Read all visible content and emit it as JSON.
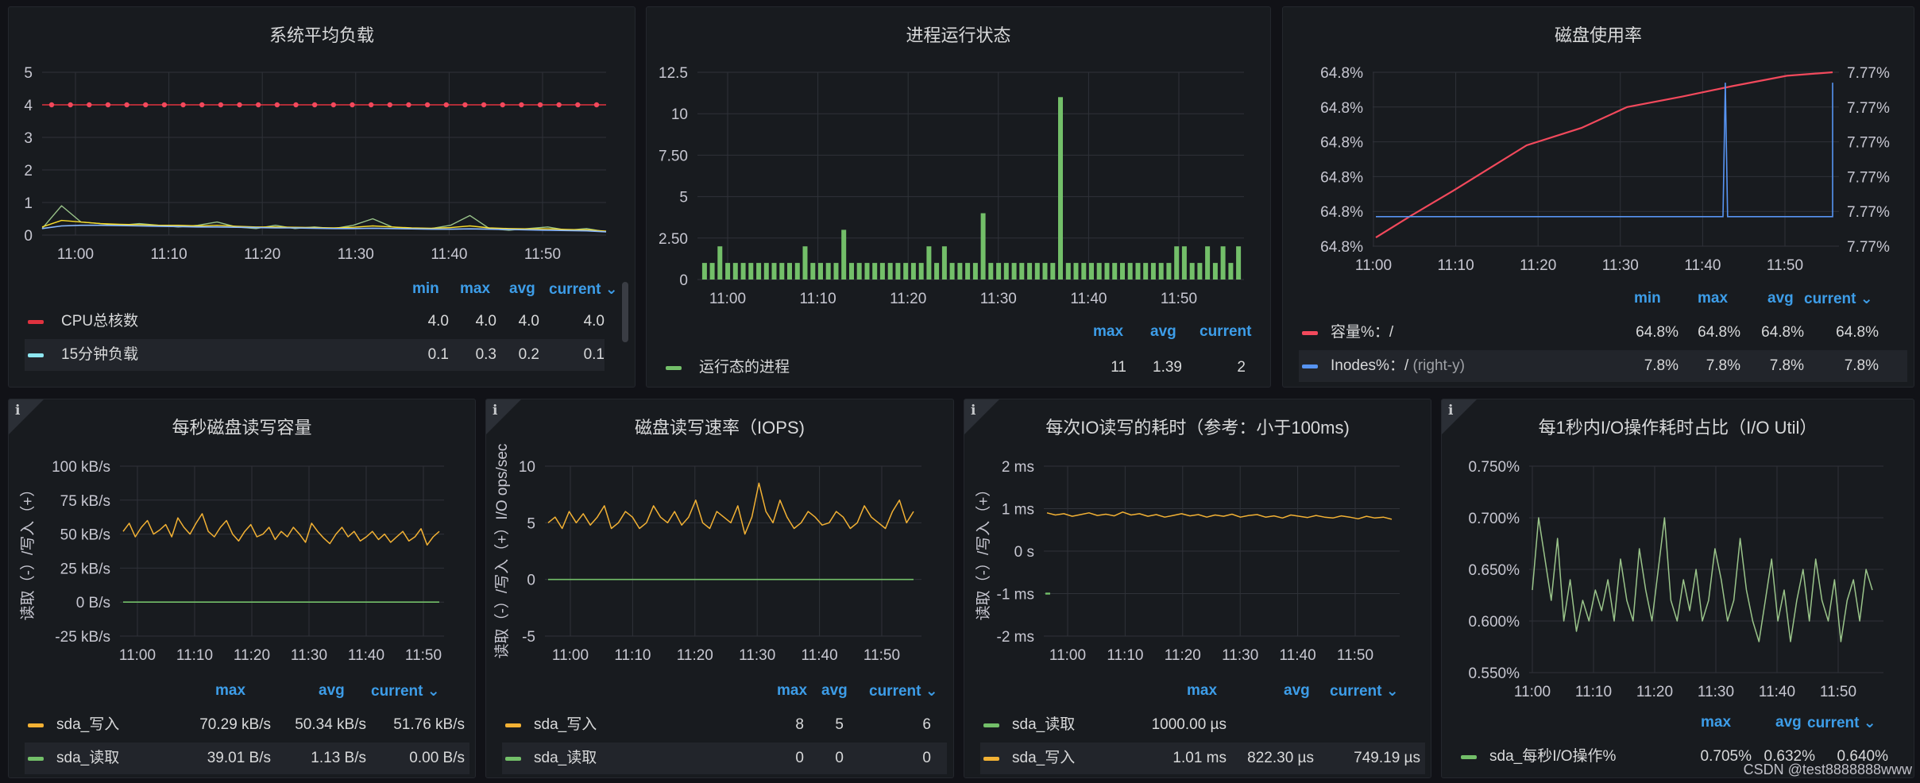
{
  "colors": {
    "grid": "#2f3239",
    "red": "#f2495c",
    "darkred": "#e0323f",
    "green": "#73bf69",
    "yellow": "#fade2a",
    "orange": "#f2b134",
    "blue": "#5794f2",
    "cyan": "#8ab8ff",
    "lightgreen": "#9ac48a",
    "legendHead": "#3d9de8"
  },
  "panels": {
    "load": {
      "title": "系统平均负载",
      "legend_heads": [
        "min",
        "max",
        "avg",
        "current ⌄"
      ],
      "rows": [
        {
          "name": "CPU总核数",
          "values": [
            "4.0",
            "4.0",
            "4.0",
            "4.0"
          ]
        },
        {
          "name": "15分钟负载",
          "values": [
            "0.1",
            "0.3",
            "0.2",
            "0.1"
          ]
        }
      ]
    },
    "proc": {
      "title": "进程运行状态",
      "legend_heads": [
        "max",
        "avg",
        "current"
      ],
      "rows": [
        {
          "name": "运行态的进程",
          "values": [
            "11",
            "1.39",
            "2"
          ]
        }
      ]
    },
    "disk": {
      "title": "磁盘使用率",
      "legend_heads": [
        "min",
        "max",
        "avg",
        "current ⌄"
      ],
      "rows": [
        {
          "name": "容量%：/",
          "values": [
            "64.8%",
            "64.8%",
            "64.8%",
            "64.8%"
          ]
        },
        {
          "name": "Inodes%：/",
          "suffix": "(right-y)",
          "values": [
            "7.8%",
            "7.8%",
            "7.8%",
            "7.8%"
          ]
        }
      ]
    },
    "rw": {
      "title": "每秒磁盘读写容量",
      "legend_heads": [
        "max",
        "avg",
        "current ⌄"
      ],
      "rows": [
        {
          "name": "sda_写入",
          "values": [
            "70.29 kB/s",
            "50.34 kB/s",
            "51.76 kB/s"
          ]
        },
        {
          "name": "sda_读取",
          "values": [
            "39.01 B/s",
            "1.13 B/s",
            "0.00 B/s"
          ]
        }
      ]
    },
    "iops": {
      "title": "磁盘读写速率（IOPS)",
      "legend_heads": [
        "max",
        "avg",
        "current ⌄"
      ],
      "rows": [
        {
          "name": "sda_写入",
          "values": [
            "8",
            "5",
            "6"
          ]
        },
        {
          "name": "sda_读取",
          "values": [
            "0",
            "0",
            "0"
          ]
        }
      ]
    },
    "lat": {
      "title": "每次IO读写的耗时（参考：小于100ms)",
      "legend_heads": [
        "max",
        "avg",
        "current ⌄"
      ],
      "rows": [
        {
          "name": "sda_读取",
          "values": [
            "1000.00 µs",
            "",
            ""
          ]
        },
        {
          "name": "sda_写入",
          "values": [
            "1.01 ms",
            "822.30 µs",
            "749.19 µs"
          ]
        }
      ]
    },
    "util": {
      "title": "每1秒内I/O操作耗时占比（I/O Util）",
      "legend_heads": [
        "max",
        "avg",
        "current ⌄"
      ],
      "rows": [
        {
          "name": "sda_每秒I/O操作%",
          "values": [
            "0.705%",
            "0.632%",
            "0.640%"
          ]
        }
      ]
    }
  },
  "watermark": "CSDN @test8888888www",
  "chart_data": [
    {
      "id": "load",
      "type": "line",
      "title": "系统平均负载",
      "x_ticks": [
        "11:00",
        "11:10",
        "11:20",
        "11:30",
        "11:40",
        "11:50"
      ],
      "y_ticks": [
        "5",
        "4",
        "3",
        "2",
        "1",
        "0"
      ],
      "ylim": [
        0,
        5
      ],
      "series": [
        {
          "name": "CPU总核数",
          "values": [
            4.0,
            4.0,
            4.0,
            4.0,
            4.0,
            4.0,
            4.0,
            4.0,
            4.0,
            4.0,
            4.0,
            4.0,
            4.0,
            4.0,
            4.0,
            4.0,
            4.0,
            4.0,
            4.0,
            4.0,
            4.0,
            4.0,
            4.0,
            4.0,
            4.0,
            4.0,
            4.0,
            4.0,
            4.0,
            4.0
          ]
        },
        {
          "values": [
            0.2,
            0.9,
            0.4,
            0.35,
            0.3,
            0.35,
            0.3,
            0.25,
            0.3,
            0.4,
            0.25,
            0.2,
            0.3,
            0.2,
            0.25,
            0.2,
            0.3,
            0.5,
            0.25,
            0.2,
            0.2,
            0.3,
            0.6,
            0.2,
            0.15,
            0.2,
            0.25,
            0.15,
            0.2,
            0.1
          ]
        },
        {
          "values": [
            0.25,
            0.45,
            0.4,
            0.35,
            0.33,
            0.32,
            0.3,
            0.3,
            0.28,
            0.3,
            0.27,
            0.25,
            0.25,
            0.24,
            0.23,
            0.22,
            0.24,
            0.28,
            0.25,
            0.22,
            0.21,
            0.23,
            0.28,
            0.22,
            0.2,
            0.19,
            0.19,
            0.17,
            0.16,
            0.12
          ]
        },
        {
          "name": "15分钟负载",
          "values": [
            0.2,
            0.28,
            0.3,
            0.3,
            0.29,
            0.28,
            0.27,
            0.26,
            0.25,
            0.25,
            0.24,
            0.23,
            0.22,
            0.22,
            0.21,
            0.2,
            0.2,
            0.21,
            0.2,
            0.19,
            0.18,
            0.18,
            0.19,
            0.18,
            0.17,
            0.16,
            0.15,
            0.14,
            0.13,
            0.1
          ]
        }
      ]
    },
    {
      "id": "proc",
      "type": "bar",
      "title": "进程运行状态",
      "x_ticks": [
        "11:00",
        "11:10",
        "11:20",
        "11:30",
        "11:40",
        "11:50"
      ],
      "y_ticks": [
        "12.5",
        "10",
        "7.50",
        "5",
        "2.50",
        "0"
      ],
      "ylim": [
        0,
        12.5
      ],
      "series": [
        {
          "name": "运行态的进程",
          "values": [
            1,
            1,
            2,
            1,
            1,
            1,
            1,
            1,
            1,
            1,
            1,
            1,
            1,
            2,
            1,
            1,
            1,
            1,
            3,
            1,
            1,
            1,
            1,
            1,
            1,
            1,
            1,
            1,
            1,
            2,
            1,
            2,
            1,
            1,
            1,
            1,
            4,
            1,
            1,
            1,
            1,
            1,
            1,
            1,
            1,
            1,
            11,
            1,
            1,
            1,
            1,
            1,
            1,
            1,
            1,
            1,
            1,
            1,
            1,
            1,
            1,
            2,
            2,
            1,
            1,
            2,
            1,
            2,
            1,
            2
          ]
        }
      ]
    },
    {
      "id": "disk",
      "type": "line",
      "title": "磁盘使用率",
      "x_ticks": [
        "11:00",
        "11:10",
        "11:20",
        "11:30",
        "11:40",
        "11:50"
      ],
      "y_ticks": [
        "64.8%",
        "64.8%",
        "64.8%",
        "64.8%",
        "64.8%",
        "64.8%"
      ],
      "y2_ticks": [
        "7.77%",
        "7.77%",
        "7.77%",
        "7.77%",
        "7.77%",
        "7.77%"
      ],
      "series": [
        {
          "name": "容量%：/",
          "axis": "left",
          "x": [
            0,
            0.08,
            0.17,
            0.25,
            0.33,
            0.45,
            0.55,
            0.67,
            0.78,
            0.9,
            1.0
          ],
          "y": [
            0.05,
            0.18,
            0.32,
            0.45,
            0.58,
            0.68,
            0.8,
            0.86,
            0.92,
            0.98,
            1.0
          ]
        },
        {
          "name": "Inodes%：/",
          "axis": "right",
          "x": [
            0,
            0.76,
            0.765,
            0.77,
            1.0,
            1.0,
            1.0
          ],
          "y": [
            0.17,
            0.17,
            0.94,
            0.17,
            0.17,
            0.94,
            0.94
          ]
        }
      ]
    },
    {
      "id": "rw",
      "type": "line",
      "title": "每秒磁盘读写容量",
      "x_ticks": [
        "11:00",
        "11:10",
        "11:20",
        "11:30",
        "11:40",
        "11:50"
      ],
      "y_ticks": [
        "100 kB/s",
        "75 kB/s",
        "50 kB/s",
        "25 kB/s",
        "0 B/s",
        "-25 kB/s"
      ],
      "ylim": [
        -25,
        100
      ],
      "ylabel": "读取（-）/写入（+）",
      "series": [
        {
          "name": "sda_写入",
          "values": [
            52,
            58,
            48,
            55,
            60,
            50,
            53,
            57,
            48,
            62,
            55,
            50,
            58,
            65,
            52,
            48,
            55,
            60,
            50,
            45,
            52,
            57,
            48,
            50,
            55,
            46,
            52,
            48,
            55,
            50,
            44,
            58,
            52,
            47,
            43,
            50,
            55,
            48,
            52,
            45,
            48,
            52,
            46,
            50,
            44,
            48,
            52,
            45,
            48,
            54,
            42,
            48,
            52
          ]
        },
        {
          "name": "sda_读取",
          "values": [
            0,
            0,
            0,
            0,
            0,
            0,
            0,
            0,
            0,
            0,
            0,
            0
          ]
        }
      ]
    },
    {
      "id": "iops",
      "type": "line",
      "title": "磁盘读写速率（IOPS)",
      "x_ticks": [
        "11:00",
        "11:10",
        "11:20",
        "11:30",
        "11:40",
        "11:50"
      ],
      "y_ticks": [
        "10",
        "5",
        "0",
        "-5"
      ],
      "ylim": [
        -5,
        10
      ],
      "ylabel": "读取（-）/写入（+）I/O ops/sec",
      "series": [
        {
          "name": "sda_写入",
          "values": [
            5,
            5.5,
            4.5,
            6,
            5,
            5.8,
            4.8,
            5.5,
            6.5,
            4.5,
            5,
            6,
            5.5,
            4.5,
            5,
            6.5,
            5.5,
            5,
            6,
            4.8,
            5.5,
            7,
            5,
            4.5,
            6,
            5.5,
            5,
            6.5,
            4,
            5.5,
            8.5,
            6,
            5,
            7,
            5.5,
            4.5,
            5,
            6,
            5.5,
            4.8,
            5,
            6,
            5.5,
            4.5,
            5,
            6.5,
            5.5,
            5,
            4.5,
            6,
            7,
            5,
            6
          ]
        },
        {
          "name": "sda_读取",
          "values": [
            0,
            0,
            0,
            0,
            0,
            0,
            0,
            0,
            0,
            0
          ]
        }
      ]
    },
    {
      "id": "lat",
      "type": "line",
      "title": "每次IO读写的耗时（参考：小于100ms)",
      "x_ticks": [
        "11:00",
        "11:10",
        "11:20",
        "11:30",
        "11:40",
        "11:50"
      ],
      "y_ticks": [
        "2 ms",
        "1 ms",
        "0 s",
        "-1 ms",
        "-2 ms"
      ],
      "ylim": [
        -2,
        2
      ],
      "ylabel": "读取（-）/写入（+）",
      "series": [
        {
          "name": "sda_写入",
          "values": [
            0.9,
            0.85,
            0.88,
            0.82,
            0.86,
            0.9,
            0.84,
            0.87,
            0.83,
            0.92,
            0.85,
            0.88,
            0.82,
            0.86,
            0.8,
            0.84,
            0.88,
            0.83,
            0.86,
            0.8,
            0.85,
            0.82,
            0.87,
            0.8,
            0.84,
            0.86,
            0.8,
            0.83,
            0.78,
            0.85,
            0.82,
            0.79,
            0.84,
            0.8,
            0.78,
            0.83,
            0.8,
            0.76,
            0.82,
            0.78,
            0.8,
            0.75
          ]
        },
        {
          "name": "sda_读取",
          "values": [
            -1,
            -1
          ]
        }
      ]
    },
    {
      "id": "util",
      "type": "line",
      "title": "每1秒内I/O操作耗时占比（I/O Util）",
      "x_ticks": [
        "11:00",
        "11:10",
        "11:20",
        "11:30",
        "11:40",
        "11:50"
      ],
      "y_ticks": [
        "0.750%",
        "0.700%",
        "0.650%",
        "0.600%",
        "0.550%"
      ],
      "ylim": [
        0.55,
        0.75
      ],
      "series": [
        {
          "name": "sda_每秒I/O操作%",
          "values": [
            0.63,
            0.7,
            0.66,
            0.62,
            0.68,
            0.6,
            0.64,
            0.59,
            0.62,
            0.6,
            0.63,
            0.61,
            0.64,
            0.6,
            0.66,
            0.62,
            0.6,
            0.67,
            0.63,
            0.6,
            0.65,
            0.7,
            0.62,
            0.6,
            0.64,
            0.61,
            0.65,
            0.6,
            0.62,
            0.67,
            0.64,
            0.6,
            0.62,
            0.68,
            0.63,
            0.6,
            0.58,
            0.62,
            0.66,
            0.6,
            0.63,
            0.58,
            0.62,
            0.65,
            0.6,
            0.66,
            0.62,
            0.6,
            0.64,
            0.58,
            0.62,
            0.64,
            0.6,
            0.65,
            0.63
          ]
        }
      ]
    }
  ]
}
